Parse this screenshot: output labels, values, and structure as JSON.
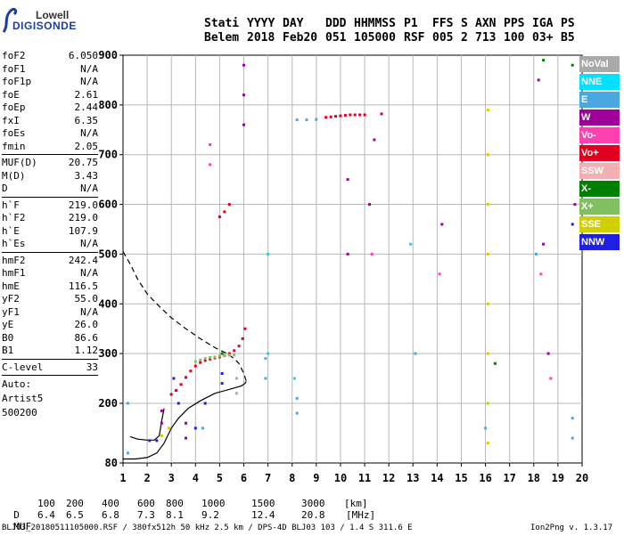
{
  "logo": {
    "top": "Lowell",
    "main": "DIGISONDE"
  },
  "header": {
    "line1": [
      "Stati",
      "YYYY",
      "DAY",
      "DDD",
      "HHMMSS",
      "P1",
      "FFS",
      "S",
      "AXN",
      "PPS",
      "IGA",
      "PS"
    ],
    "line2": [
      "Belem",
      "2018",
      "Feb20",
      "051",
      "105000",
      "RSF",
      "005",
      "2",
      "713",
      "100",
      "03+",
      "B5"
    ]
  },
  "params_a": [
    {
      "label": "foF2",
      "value": "6.050"
    },
    {
      "label": "foF1",
      "value": "N/A"
    },
    {
      "label": "foF1p",
      "value": "N/A"
    },
    {
      "label": "foE",
      "value": "2.61"
    },
    {
      "label": "foEp",
      "value": "2.44"
    },
    {
      "label": "fxI",
      "value": "6.35"
    },
    {
      "label": "foEs",
      "value": "N/A"
    },
    {
      "label": "fmin",
      "value": "2.05"
    }
  ],
  "params_b": [
    {
      "label": "MUF(D)",
      "value": "20.75"
    },
    {
      "label": "M(D)",
      "value": "3.43"
    },
    {
      "label": "D",
      "value": "N/A"
    }
  ],
  "params_c": [
    {
      "label": "h`F",
      "value": "219.0"
    },
    {
      "label": "h`F2",
      "value": "219.0"
    },
    {
      "label": "h`E",
      "value": "107.9"
    },
    {
      "label": "h`Es",
      "value": "N/A"
    }
  ],
  "params_d": [
    {
      "label": "hmF2",
      "value": "242.4"
    },
    {
      "label": "hmF1",
      "value": "N/A"
    },
    {
      "label": "hmE",
      "value": "116.5"
    },
    {
      "label": "yF2",
      "value": "55.0"
    },
    {
      "label": "yF1",
      "value": "N/A"
    },
    {
      "label": "yE",
      "value": "26.0"
    },
    {
      "label": "B0",
      "value": "86.6"
    },
    {
      "label": "B1",
      "value": "1.12"
    }
  ],
  "params_e": [
    {
      "label": "C-level",
      "value": "33"
    }
  ],
  "auto": {
    "line1": "Auto:",
    "line2": "Artist5",
    "line3": "500200"
  },
  "legend": [
    {
      "label": "NoVal",
      "color": "#a9a9a9"
    },
    {
      "label": "NNE",
      "color": "#00e0ff"
    },
    {
      "label": "E",
      "color": "#4aa8e0"
    },
    {
      "label": "W",
      "color": "#a0009a"
    },
    {
      "label": "Vo-",
      "color": "#ff40b0"
    },
    {
      "label": "Vo+",
      "color": "#e00020"
    },
    {
      "label": "SSW",
      "color": "#f4b0b0"
    },
    {
      "label": "X-",
      "color": "#008000"
    },
    {
      "label": "X+",
      "color": "#80c060"
    },
    {
      "label": "SSE",
      "color": "#d0d000"
    },
    {
      "label": "NNW",
      "color": "#2020e0"
    }
  ],
  "footer": {
    "d_label": "D",
    "d_values": [
      "100",
      "200",
      "400",
      "600",
      "800",
      "1000",
      "1500",
      "3000"
    ],
    "d_unit": "[km]",
    "muf_label": "MUF",
    "muf_values": [
      "6.4",
      "6.5",
      "6.8",
      "7.3",
      "8.1",
      "9.2",
      "12.4",
      "20.8"
    ],
    "muf_unit": "[MHz]",
    "file_info": "BLJ03_20180511105000.RSF / 380fx512h 50 kHz 2.5 km / DPS-4D BLJ03 103 / 1.4 S 311.6 E",
    "version": "Ion2Png v. 1.3.17"
  },
  "chart_data": {
    "type": "scatter",
    "xlim": [
      1,
      20
    ],
    "ylim": [
      80,
      900
    ],
    "x_ticks": [
      1,
      2,
      3,
      4,
      5,
      6,
      7,
      8,
      9,
      10,
      11,
      12,
      13,
      14,
      15,
      16,
      17,
      18,
      19,
      20
    ],
    "y_ticks": [
      80,
      200,
      300,
      400,
      500,
      600,
      700,
      800,
      900
    ],
    "grid": true,
    "legend_position": "right",
    "series": [
      {
        "name": "Vo+",
        "color": "#e00020",
        "points": [
          [
            3.0,
            218
          ],
          [
            3.2,
            226
          ],
          [
            3.4,
            238
          ],
          [
            3.6,
            252
          ],
          [
            3.8,
            265
          ],
          [
            4.0,
            275
          ],
          [
            4.2,
            282
          ],
          [
            4.4,
            286
          ],
          [
            4.6,
            289
          ],
          [
            4.8,
            291
          ],
          [
            5.0,
            293
          ],
          [
            5.2,
            296
          ],
          [
            5.4,
            300
          ],
          [
            5.6,
            306
          ],
          [
            5.8,
            315
          ],
          [
            5.95,
            330
          ],
          [
            6.05,
            350
          ],
          [
            5.0,
            575
          ],
          [
            5.2,
            585
          ],
          [
            5.4,
            600
          ],
          [
            9.4,
            775
          ],
          [
            9.6,
            776
          ],
          [
            9.8,
            777
          ],
          [
            10.0,
            778
          ],
          [
            10.2,
            779
          ],
          [
            10.4,
            780
          ],
          [
            10.6,
            780
          ],
          [
            10.8,
            780
          ],
          [
            11.0,
            780
          ],
          [
            11.7,
            782
          ]
        ]
      },
      {
        "name": "X+",
        "color": "#80c060",
        "points": [
          [
            4.0,
            284
          ],
          [
            4.2,
            287
          ],
          [
            4.4,
            290
          ],
          [
            4.6,
            292
          ],
          [
            4.8,
            293
          ],
          [
            5.0,
            295
          ],
          [
            5.2,
            296
          ],
          [
            5.4,
            297
          ],
          [
            5.6,
            297
          ]
        ]
      },
      {
        "name": "NNE",
        "color": "#00e0ff",
        "points": [
          [
            7.0,
            500
          ],
          [
            7.0,
            300
          ],
          [
            8.1,
            250
          ],
          [
            12.9,
            520
          ]
        ]
      },
      {
        "name": "E",
        "color": "#4aa8e0",
        "points": [
          [
            8.2,
            770
          ],
          [
            8.6,
            770
          ],
          [
            9.0,
            771
          ],
          [
            6.9,
            290
          ],
          [
            6.9,
            250
          ],
          [
            8.2,
            210
          ],
          [
            8.2,
            180
          ],
          [
            13.1,
            300
          ],
          [
            16.0,
            150
          ],
          [
            18.1,
            500
          ],
          [
            19.6,
            170
          ],
          [
            19.6,
            130
          ],
          [
            1.2,
            200
          ],
          [
            1.2,
            100
          ],
          [
            4.3,
            150
          ]
        ]
      },
      {
        "name": "W",
        "color": "#a0009a",
        "points": [
          [
            2.6,
            185
          ],
          [
            2.6,
            160
          ],
          [
            3.6,
            160
          ],
          [
            3.6,
            130
          ],
          [
            6.0,
            880
          ],
          [
            6.0,
            820
          ],
          [
            6.0,
            760
          ],
          [
            10.3,
            650
          ],
          [
            10.3,
            500
          ],
          [
            11.2,
            600
          ],
          [
            11.4,
            730
          ],
          [
            14.2,
            560
          ],
          [
            18.2,
            850
          ],
          [
            18.4,
            520
          ],
          [
            18.6,
            300
          ],
          [
            19.7,
            600
          ]
        ]
      },
      {
        "name": "Vo-",
        "color": "#ff40b0",
        "points": [
          [
            4.6,
            720
          ],
          [
            4.6,
            680
          ],
          [
            11.3,
            500
          ],
          [
            14.1,
            460
          ],
          [
            18.3,
            460
          ],
          [
            18.7,
            250
          ]
        ]
      },
      {
        "name": "X-",
        "color": "#008000",
        "points": [
          [
            5.1,
            300
          ],
          [
            18.4,
            890
          ],
          [
            19.6,
            880
          ],
          [
            16.4,
            280
          ]
        ]
      },
      {
        "name": "SSE",
        "color": "#d0d000",
        "points": [
          [
            16.1,
            790
          ],
          [
            16.1,
            700
          ],
          [
            16.1,
            600
          ],
          [
            16.1,
            500
          ],
          [
            16.1,
            400
          ],
          [
            16.1,
            300
          ],
          [
            16.1,
            200
          ],
          [
            16.1,
            120
          ],
          [
            2.9,
            150
          ],
          [
            2.6,
            135
          ]
        ]
      },
      {
        "name": "NNW",
        "color": "#2020e0",
        "points": [
          [
            2.4,
            125
          ],
          [
            2.1,
            125
          ],
          [
            5.1,
            260
          ],
          [
            5.1,
            240
          ],
          [
            4.0,
            150
          ],
          [
            3.3,
            200
          ],
          [
            3.1,
            250
          ],
          [
            4.4,
            200
          ],
          [
            19.6,
            560
          ]
        ]
      },
      {
        "name": "NoVal",
        "color": "#a9a9a9",
        "points": [
          [
            5.7,
            250
          ],
          [
            5.7,
            220
          ]
        ]
      }
    ],
    "lines": [
      {
        "name": "profile-solid",
        "style": "solid",
        "points": [
          [
            1.0,
            88
          ],
          [
            1.5,
            88
          ],
          [
            2.0,
            91
          ],
          [
            2.4,
            100
          ],
          [
            2.7,
            120
          ],
          [
            3.0,
            150
          ],
          [
            3.3,
            170
          ],
          [
            3.7,
            190
          ],
          [
            4.2,
            205
          ],
          [
            4.8,
            220
          ],
          [
            5.4,
            228
          ],
          [
            5.9,
            235
          ],
          [
            6.05,
            240
          ],
          [
            6.1,
            244
          ]
        ]
      },
      {
        "name": "profile-lower",
        "style": "solid",
        "points": [
          [
            1.3,
            133
          ],
          [
            1.6,
            128
          ],
          [
            2.0,
            126
          ],
          [
            2.3,
            126
          ],
          [
            2.5,
            135
          ],
          [
            2.6,
            165
          ],
          [
            2.7,
            190
          ]
        ]
      },
      {
        "name": "profile-dashed",
        "style": "dashed",
        "points": [
          [
            1.0,
            505
          ],
          [
            1.3,
            480
          ],
          [
            1.6,
            450
          ],
          [
            2.0,
            420
          ],
          [
            2.5,
            395
          ],
          [
            3.0,
            372
          ],
          [
            3.6,
            350
          ],
          [
            4.2,
            330
          ],
          [
            4.8,
            312
          ],
          [
            5.3,
            300
          ],
          [
            5.6,
            290
          ],
          [
            5.8,
            280
          ],
          [
            6.0,
            260
          ],
          [
            6.1,
            245
          ]
        ]
      }
    ]
  }
}
